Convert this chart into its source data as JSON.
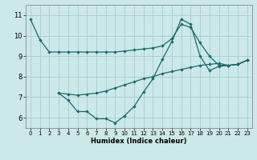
{
  "xlabel": "Humidex (Indice chaleur)",
  "bg_color": "#cce8e8",
  "line_color": "#1a6b6b",
  "grid_color": "#aacccc",
  "xlim": [
    -0.5,
    23.5
  ],
  "ylim": [
    5.5,
    11.5
  ],
  "yticks": [
    6,
    7,
    8,
    9,
    10,
    11
  ],
  "xticks": [
    0,
    1,
    2,
    3,
    4,
    5,
    6,
    7,
    8,
    9,
    10,
    11,
    12,
    13,
    14,
    15,
    16,
    17,
    18,
    19,
    20,
    21,
    22,
    23
  ],
  "line1_x": [
    0,
    1,
    2,
    3,
    4,
    5,
    6,
    7,
    8,
    9,
    10,
    11,
    12,
    13,
    14,
    15,
    16,
    17,
    18,
    19,
    20,
    21,
    22,
    23
  ],
  "line1_y": [
    10.8,
    9.8,
    9.2,
    9.2,
    9.2,
    9.2,
    9.2,
    9.2,
    9.2,
    9.2,
    9.25,
    9.3,
    9.35,
    9.4,
    9.5,
    9.85,
    10.55,
    10.4,
    9.65,
    9.0,
    8.55,
    8.55,
    8.6,
    8.8
  ],
  "line2_x": [
    3,
    4,
    5,
    6,
    7,
    8,
    9,
    10,
    11,
    12,
    13,
    14,
    15,
    16,
    17,
    18,
    19,
    20,
    21,
    22,
    23
  ],
  "line2_y": [
    7.2,
    6.85,
    6.3,
    6.3,
    5.95,
    5.95,
    5.75,
    6.1,
    6.55,
    7.25,
    7.9,
    8.85,
    9.7,
    10.8,
    10.55,
    9.0,
    8.3,
    8.5,
    8.55,
    8.6,
    8.8
  ],
  "line3_x": [
    3,
    4,
    5,
    6,
    7,
    8,
    9,
    10,
    11,
    12,
    13,
    14,
    15,
    16,
    17,
    18,
    19,
    20,
    21,
    22,
    23
  ],
  "line3_y": [
    7.2,
    7.15,
    7.1,
    7.15,
    7.2,
    7.3,
    7.45,
    7.6,
    7.75,
    7.9,
    8.0,
    8.15,
    8.25,
    8.35,
    8.45,
    8.55,
    8.6,
    8.65,
    8.55,
    8.6,
    8.8
  ],
  "marker": "D",
  "marker_size": 2.2,
  "line_width": 0.9
}
